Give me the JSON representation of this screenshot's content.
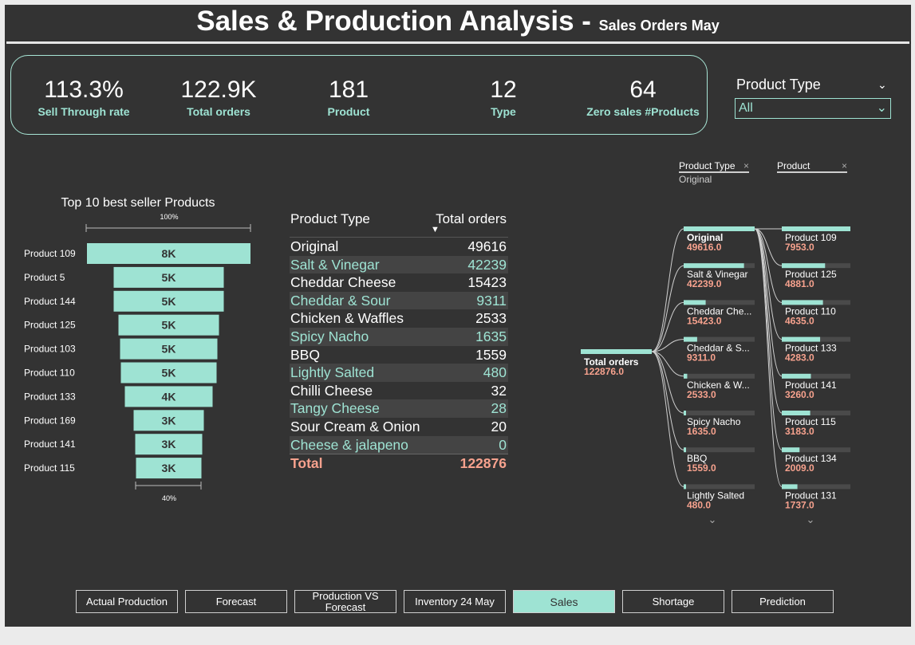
{
  "header": {
    "title": "Sales & Production Analysis - ",
    "subtitle": "Sales Orders May"
  },
  "kpis": [
    {
      "value": "113.3%",
      "label": "Sell Through rate"
    },
    {
      "value": "122.9K",
      "label": "Total orders"
    },
    {
      "value": "181",
      "label": "Product"
    },
    {
      "value": "12",
      "label": "Type"
    },
    {
      "value": "64",
      "label": "Zero sales #Products"
    }
  ],
  "slicer": {
    "title": "Product Type",
    "value": "All"
  },
  "funnel": {
    "title": "Top 10 best seller Products",
    "top_pct": "100%",
    "bottom_pct": "40%",
    "products": [
      "Product 109",
      "Product 5",
      "Product 144",
      "Product 125",
      "Product 103",
      "Product 110",
      "Product 133",
      "Product 169",
      "Product 141",
      "Product 115"
    ],
    "labels": [
      "8K",
      "5K",
      "5K",
      "5K",
      "5K",
      "5K",
      "4K",
      "3K",
      "3K",
      "3K"
    ]
  },
  "table": {
    "col1": "Product Type",
    "col2": "Total orders",
    "rows": [
      {
        "type": "Original",
        "orders": "49616"
      },
      {
        "type": "Salt & Vinegar",
        "orders": "42239"
      },
      {
        "type": "Cheddar Cheese",
        "orders": "15423"
      },
      {
        "type": "Cheddar & Sour",
        "orders": "9311"
      },
      {
        "type": "Chicken & Waffles",
        "orders": "2533"
      },
      {
        "type": "Spicy Nacho",
        "orders": "1635"
      },
      {
        "type": "BBQ",
        "orders": "1559"
      },
      {
        "type": "Lightly Salted",
        "orders": "480"
      },
      {
        "type": "Chilli Cheese",
        "orders": "32"
      },
      {
        "type": "Tangy Cheese",
        "orders": "28"
      },
      {
        "type": "Sour Cream & Onion",
        "orders": "20"
      },
      {
        "type": "Cheese & jalapeno",
        "orders": "0"
      }
    ],
    "total_label": "Total",
    "total_value": "122876"
  },
  "tree": {
    "col1_header": "Product Type",
    "col1_selected": "Original",
    "col2_header": "Product",
    "root": {
      "label": "Total orders",
      "value": "122876.0"
    },
    "level1": [
      {
        "label": "Original",
        "value": "49616.0",
        "fill": 1.0
      },
      {
        "label": "Salt & Vinegar",
        "value": "42239.0",
        "fill": 0.85
      },
      {
        "label": "Cheddar Che...",
        "value": "15423.0",
        "fill": 0.31
      },
      {
        "label": "Cheddar & S...",
        "value": "9311.0",
        "fill": 0.19
      },
      {
        "label": "Chicken & W...",
        "value": "2533.0",
        "fill": 0.05
      },
      {
        "label": "Spicy Nacho",
        "value": "1635.0",
        "fill": 0.03
      },
      {
        "label": "BBQ",
        "value": "1559.0",
        "fill": 0.03
      },
      {
        "label": "Lightly Salted",
        "value": "480.0",
        "fill": 0.01
      }
    ],
    "level2": [
      {
        "label": "Product 109",
        "value": "7953.0",
        "fill": 1.0
      },
      {
        "label": "Product 125",
        "value": "4881.0",
        "fill": 0.61
      },
      {
        "label": "Product 110",
        "value": "4635.0",
        "fill": 0.58
      },
      {
        "label": "Product 133",
        "value": "4283.0",
        "fill": 0.54
      },
      {
        "label": "Product 141",
        "value": "3260.0",
        "fill": 0.41
      },
      {
        "label": "Product 115",
        "value": "3183.0",
        "fill": 0.4
      },
      {
        "label": "Product 134",
        "value": "2009.0",
        "fill": 0.25
      },
      {
        "label": "Product 131",
        "value": "1737.0",
        "fill": 0.22
      }
    ]
  },
  "nav": {
    "buttons": [
      {
        "label": "Actual Production"
      },
      {
        "label": "Forecast"
      },
      {
        "label": "Production VS Forecast"
      },
      {
        "label": "Inventory 24 May"
      },
      {
        "label": "Sales",
        "active": true
      },
      {
        "label": "Shortage"
      },
      {
        "label": "Prediction"
      }
    ]
  },
  "colors": {
    "accent": "#9ee3d3",
    "value_text": "#f7a28e",
    "background": "#333333",
    "alt_row": "#444444"
  }
}
